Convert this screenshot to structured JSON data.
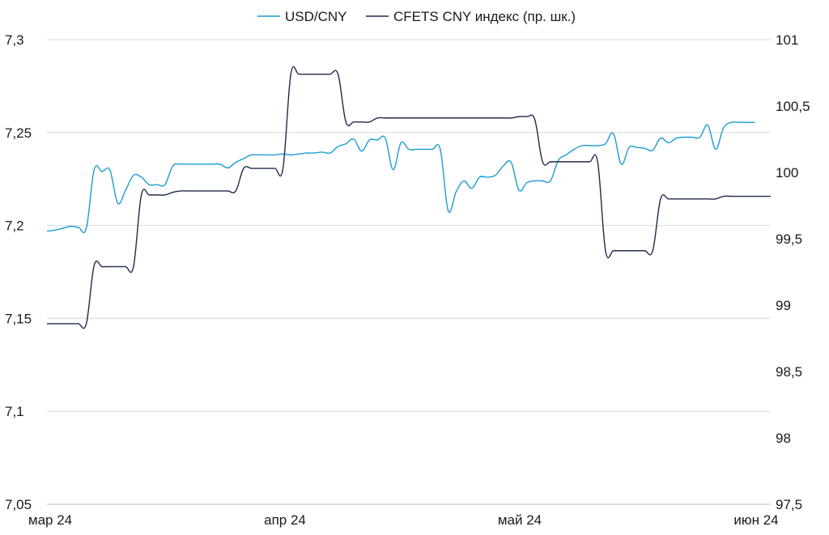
{
  "chart_data": {
    "type": "line",
    "title": "",
    "legend": {
      "placement": "top-center",
      "entries": [
        "USD/CNY",
        "CFETS CNY индекс (пр. шк.)"
      ]
    },
    "x_ticks": [
      "мар 24",
      "апр 24",
      "май 24",
      "июн 24"
    ],
    "y_left": {
      "ticks": [
        "7,05",
        "7,1",
        "7,15",
        "7,2",
        "7,25",
        "7,3"
      ],
      "range": [
        7.05,
        7.3
      ]
    },
    "y_right": {
      "ticks": [
        "97,5",
        "98",
        "98,5",
        "99",
        "99,5",
        "100",
        "100,5",
        "101"
      ],
      "range": [
        97.5,
        101
      ]
    },
    "grid": true,
    "x_range_days": [
      0,
      92
    ],
    "series": [
      {
        "name": "USD/CNY",
        "axis": "left",
        "color": "#1a9cd0",
        "points": [
          [
            0,
            7.197
          ],
          [
            1,
            7.1975
          ],
          [
            2,
            7.1985
          ],
          [
            3,
            7.1995
          ],
          [
            4,
            7.199
          ],
          [
            5,
            7.1985
          ],
          [
            6,
            7.23
          ],
          [
            7,
            7.229
          ],
          [
            8,
            7.2298
          ],
          [
            9,
            7.212
          ],
          [
            10,
            7.219
          ],
          [
            11,
            7.227
          ],
          [
            12,
            7.226
          ],
          [
            13,
            7.222
          ],
          [
            14,
            7.222
          ],
          [
            15,
            7.222
          ],
          [
            16,
            7.232
          ],
          [
            17,
            7.233
          ],
          [
            18,
            7.233
          ],
          [
            19,
            7.233
          ],
          [
            20,
            7.233
          ],
          [
            21,
            7.233
          ],
          [
            22,
            7.233
          ],
          [
            23,
            7.231
          ],
          [
            24,
            7.234
          ],
          [
            25,
            7.236
          ],
          [
            26,
            7.238
          ],
          [
            27,
            7.238
          ],
          [
            28,
            7.238
          ],
          [
            29,
            7.238
          ],
          [
            30,
            7.2385
          ],
          [
            31,
            7.238
          ],
          [
            32,
            7.2385
          ],
          [
            33,
            7.239
          ],
          [
            34,
            7.239
          ],
          [
            35,
            7.2395
          ],
          [
            36,
            7.239
          ],
          [
            37,
            7.2425
          ],
          [
            38,
            7.244
          ],
          [
            39,
            7.2465
          ],
          [
            40,
            7.24
          ],
          [
            41,
            7.246
          ],
          [
            42,
            7.246
          ],
          [
            43,
            7.247
          ],
          [
            44,
            7.23
          ],
          [
            45,
            7.2445
          ],
          [
            46,
            7.241
          ],
          [
            47,
            7.241
          ],
          [
            48,
            7.241
          ],
          [
            49,
            7.241
          ],
          [
            50,
            7.241
          ],
          [
            51,
            7.208
          ],
          [
            52,
            7.218
          ],
          [
            53,
            7.224
          ],
          [
            54,
            7.22
          ],
          [
            55,
            7.226
          ],
          [
            56,
            7.226
          ],
          [
            57,
            7.227
          ],
          [
            58,
            7.232
          ],
          [
            59,
            7.234
          ],
          [
            60,
            7.219
          ],
          [
            61,
            7.223
          ],
          [
            62,
            7.224
          ],
          [
            63,
            7.224
          ],
          [
            64,
            7.224
          ],
          [
            65,
            7.235
          ],
          [
            66,
            7.238
          ],
          [
            67,
            7.241
          ],
          [
            68,
            7.243
          ],
          [
            69,
            7.243
          ],
          [
            70,
            7.243
          ],
          [
            71,
            7.244
          ],
          [
            72,
            7.2495
          ],
          [
            73,
            7.233
          ],
          [
            74,
            7.242
          ],
          [
            75,
            7.242
          ],
          [
            76,
            7.2415
          ],
          [
            77,
            7.2405
          ],
          [
            78,
            7.247
          ],
          [
            79,
            7.2445
          ],
          [
            80,
            7.247
          ],
          [
            81,
            7.2475
          ],
          [
            82,
            7.2475
          ],
          [
            83,
            7.2475
          ],
          [
            84,
            7.254
          ],
          [
            85,
            7.241
          ],
          [
            86,
            7.2525
          ],
          [
            87,
            7.2555
          ],
          [
            88,
            7.2555
          ],
          [
            89,
            7.2555
          ],
          [
            90,
            7.2555
          ]
        ]
      },
      {
        "name": "CFETS CNY индекс (пр. шк.)",
        "axis": "right",
        "color": "#1f2a4a",
        "points": [
          [
            0,
            98.86
          ],
          [
            1,
            98.86
          ],
          [
            2,
            98.86
          ],
          [
            3,
            98.86
          ],
          [
            4,
            98.86
          ],
          [
            5,
            98.86
          ],
          [
            6,
            99.3
          ],
          [
            7,
            99.29
          ],
          [
            8,
            99.29
          ],
          [
            9,
            99.29
          ],
          [
            10,
            99.29
          ],
          [
            11,
            99.29
          ],
          [
            12,
            99.83
          ],
          [
            13,
            99.83
          ],
          [
            14,
            99.83
          ],
          [
            15,
            99.83
          ],
          [
            16,
            99.85
          ],
          [
            17,
            99.86
          ],
          [
            18,
            99.86
          ],
          [
            19,
            99.86
          ],
          [
            20,
            99.86
          ],
          [
            21,
            99.86
          ],
          [
            22,
            99.86
          ],
          [
            23,
            99.86
          ],
          [
            24,
            99.86
          ],
          [
            25,
            100.03
          ],
          [
            26,
            100.03
          ],
          [
            27,
            100.03
          ],
          [
            28,
            100.03
          ],
          [
            29,
            100.03
          ],
          [
            30,
            100.03
          ],
          [
            31,
            100.74
          ],
          [
            32,
            100.74
          ],
          [
            33,
            100.74
          ],
          [
            34,
            100.74
          ],
          [
            35,
            100.74
          ],
          [
            36,
            100.74
          ],
          [
            37,
            100.74
          ],
          [
            38,
            100.38
          ],
          [
            39,
            100.38
          ],
          [
            40,
            100.38
          ],
          [
            41,
            100.38
          ],
          [
            42,
            100.41
          ],
          [
            43,
            100.41
          ],
          [
            44,
            100.41
          ],
          [
            45,
            100.41
          ],
          [
            46,
            100.41
          ],
          [
            47,
            100.41
          ],
          [
            48,
            100.41
          ],
          [
            49,
            100.41
          ],
          [
            50,
            100.41
          ],
          [
            51,
            100.41
          ],
          [
            52,
            100.41
          ],
          [
            53,
            100.41
          ],
          [
            54,
            100.41
          ],
          [
            55,
            100.41
          ],
          [
            56,
            100.41
          ],
          [
            57,
            100.41
          ],
          [
            58,
            100.41
          ],
          [
            59,
            100.41
          ],
          [
            60,
            100.42
          ],
          [
            61,
            100.42
          ],
          [
            62,
            100.4
          ],
          [
            63,
            100.08
          ],
          [
            64,
            100.08
          ],
          [
            65,
            100.08
          ],
          [
            66,
            100.08
          ],
          [
            67,
            100.08
          ],
          [
            68,
            100.08
          ],
          [
            69,
            100.08
          ],
          [
            70,
            100.08
          ],
          [
            71,
            99.41
          ],
          [
            72,
            99.41
          ],
          [
            73,
            99.41
          ],
          [
            74,
            99.41
          ],
          [
            75,
            99.41
          ],
          [
            76,
            99.41
          ],
          [
            77,
            99.41
          ],
          [
            78,
            99.8
          ],
          [
            79,
            99.8
          ],
          [
            80,
            99.8
          ],
          [
            81,
            99.8
          ],
          [
            82,
            99.8
          ],
          [
            83,
            99.8
          ],
          [
            84,
            99.8
          ],
          [
            85,
            99.8
          ],
          [
            86,
            99.82
          ],
          [
            87,
            99.82
          ],
          [
            88,
            99.82
          ],
          [
            89,
            99.82
          ],
          [
            90,
            99.82
          ],
          [
            91,
            99.82
          ],
          [
            92,
            99.82
          ]
        ]
      }
    ]
  }
}
